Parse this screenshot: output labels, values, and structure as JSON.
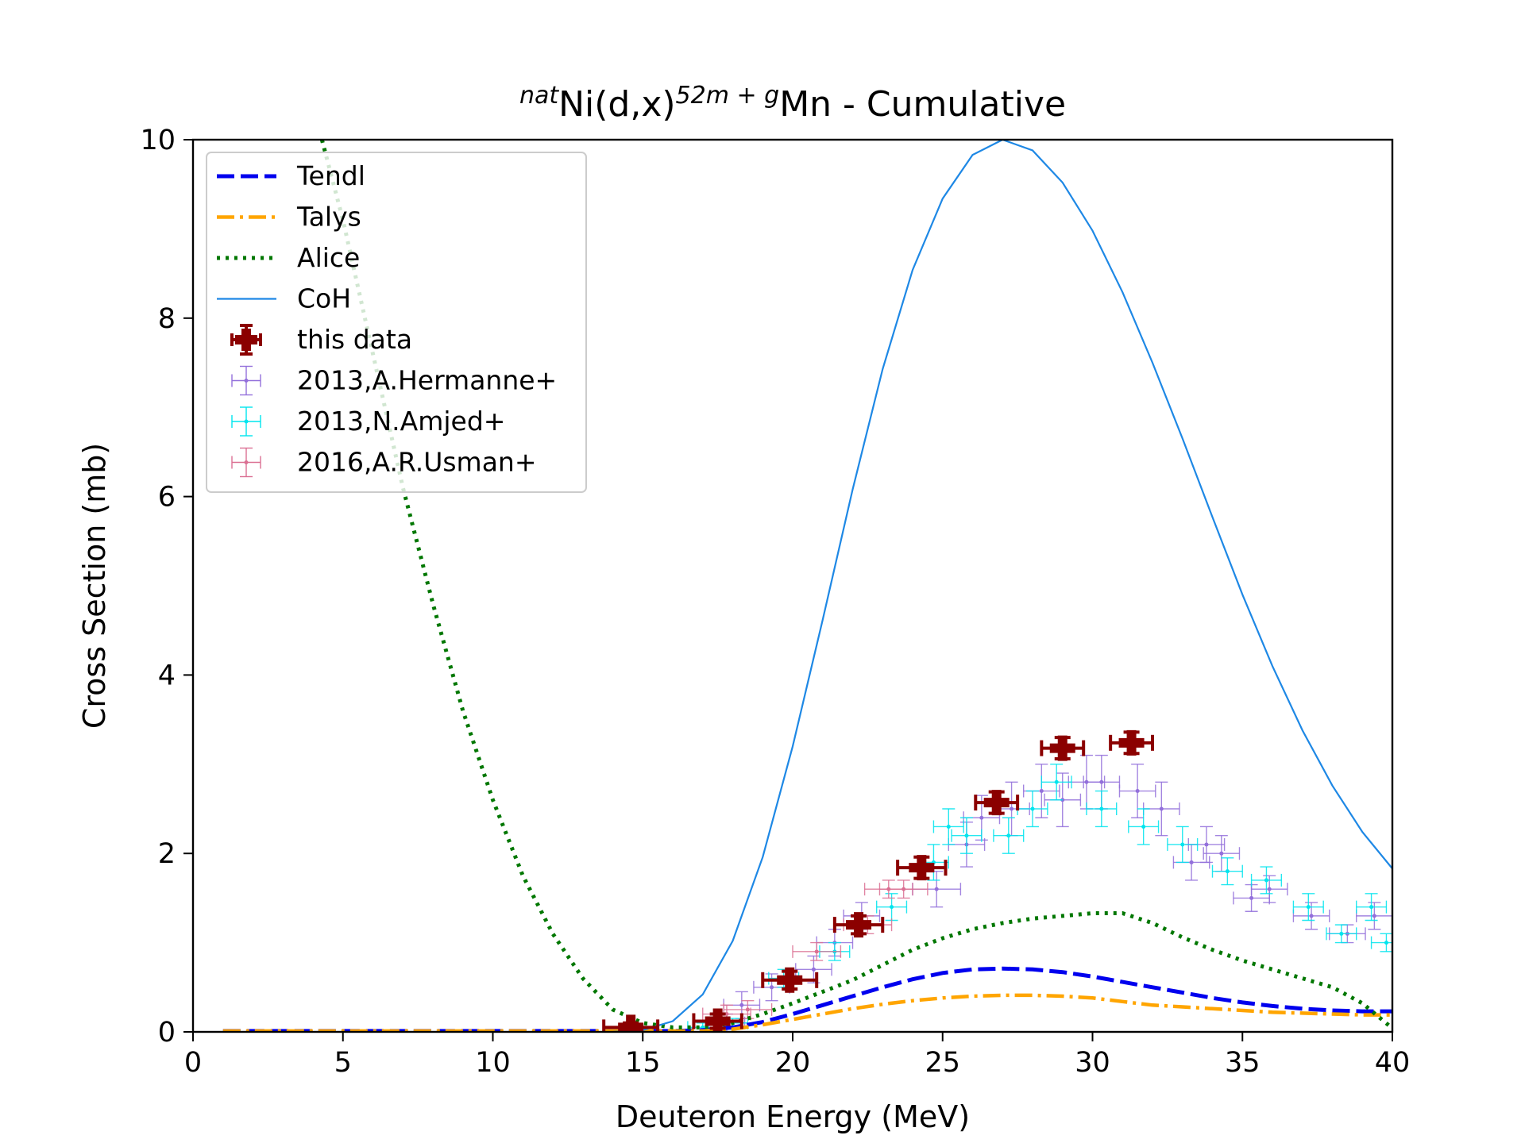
{
  "chart_data": {
    "type": "line",
    "title": {
      "pre_sup": "nat",
      "main": "Ni(d,x)",
      "sup": "52m + g",
      "post": "Mn - Cumulative"
    },
    "xlabel": "Deuteron Energy (MeV)",
    "ylabel": "Cross Section (mb)",
    "xlim": [
      0,
      40
    ],
    "ylim": [
      0,
      10
    ],
    "x_ticks": [
      "0",
      "5",
      "10",
      "15",
      "20",
      "25",
      "30",
      "35",
      "40"
    ],
    "y_ticks": [
      "0",
      "2",
      "4",
      "6",
      "8",
      "10"
    ],
    "grid": false,
    "legend_position": "top-left",
    "series": [
      {
        "name": "Tendl",
        "kind": "line",
        "style": "dashed",
        "color": "#0000ee",
        "x": [
          1,
          13,
          15,
          16,
          17,
          18,
          19,
          20,
          21,
          22,
          23,
          24,
          25,
          26,
          27,
          28,
          29,
          30,
          31,
          32,
          33,
          34,
          35,
          36,
          37,
          38,
          39,
          40
        ],
        "y": [
          0.01,
          0.01,
          0.01,
          0.01,
          0.02,
          0.05,
          0.11,
          0.2,
          0.3,
          0.4,
          0.5,
          0.59,
          0.66,
          0.7,
          0.71,
          0.7,
          0.67,
          0.62,
          0.56,
          0.5,
          0.44,
          0.38,
          0.33,
          0.29,
          0.26,
          0.24,
          0.23,
          0.23
        ]
      },
      {
        "name": "Talys",
        "kind": "line",
        "style": "dashdot",
        "color": "#ffa500",
        "x": [
          1,
          13,
          15,
          16,
          17,
          18,
          19,
          20,
          21,
          22,
          23,
          24,
          25,
          26,
          27,
          28,
          29,
          30,
          31,
          32,
          33,
          34,
          35,
          36,
          37,
          38,
          39,
          40
        ],
        "y": [
          0.01,
          0.01,
          0.01,
          0.01,
          0.01,
          0.03,
          0.08,
          0.14,
          0.2,
          0.26,
          0.31,
          0.35,
          0.38,
          0.4,
          0.41,
          0.41,
          0.4,
          0.38,
          0.34,
          0.3,
          0.28,
          0.26,
          0.24,
          0.22,
          0.21,
          0.2,
          0.19,
          0.19
        ]
      },
      {
        "name": "Alice",
        "kind": "line",
        "style": "dotted",
        "color": "#007700",
        "x": [
          4.3,
          5,
          6,
          7,
          8,
          9,
          10,
          11,
          12,
          13,
          14,
          15,
          16,
          17,
          18,
          19,
          20,
          21,
          22,
          23,
          24,
          25,
          26,
          27,
          28,
          29,
          30,
          31,
          32,
          33,
          34,
          35,
          36,
          37,
          38,
          39,
          40
        ],
        "y": [
          10,
          9.1,
          7.6,
          6.1,
          4.8,
          3.6,
          2.6,
          1.75,
          1.1,
          0.6,
          0.25,
          0.1,
          0.05,
          0.05,
          0.1,
          0.2,
          0.32,
          0.45,
          0.58,
          0.75,
          0.92,
          1.05,
          1.15,
          1.22,
          1.27,
          1.3,
          1.33,
          1.33,
          1.22,
          1.06,
          0.92,
          0.8,
          0.7,
          0.6,
          0.5,
          0.32,
          0.04
        ]
      },
      {
        "name": "CoH",
        "kind": "line",
        "style": "solid",
        "color": "#1e88e5",
        "x": [
          14,
          15,
          16,
          17,
          18,
          19,
          20,
          21,
          22,
          23,
          24,
          25,
          26,
          27,
          28,
          29,
          30,
          31,
          32,
          33,
          34,
          35,
          36,
          37,
          38,
          39,
          40
        ],
        "y": [
          0.0,
          0.02,
          0.12,
          0.42,
          1.02,
          1.96,
          3.2,
          4.62,
          6.08,
          7.43,
          8.54,
          9.34,
          9.83,
          10.0,
          9.88,
          9.52,
          8.98,
          8.29,
          7.5,
          6.65,
          5.77,
          4.9,
          4.1,
          3.38,
          2.76,
          2.24,
          1.83
        ]
      },
      {
        "name": "this data",
        "kind": "errorbar",
        "color": "#8b0000",
        "x": [
          14.6,
          17.5,
          19.9,
          22.2,
          24.3,
          26.8,
          29.0,
          31.3
        ],
        "y": [
          0.05,
          0.12,
          0.58,
          1.2,
          1.84,
          2.57,
          3.18,
          3.24
        ],
        "xerr": [
          0.9,
          0.8,
          0.9,
          0.8,
          0.8,
          0.7,
          0.7,
          0.7
        ],
        "yerr": [
          0.05,
          0.08,
          0.1,
          0.1,
          0.12,
          0.12,
          0.12,
          0.12
        ]
      },
      {
        "name": "2013,A.Hermanne+",
        "kind": "errorbar",
        "color": "#9370db",
        "x": [
          17.8,
          18.3,
          19.3,
          20.7,
          21.4,
          22.3,
          24.8,
          25.8,
          26.3,
          27.3,
          28.3,
          29.0,
          29.8,
          30.3,
          31.5,
          32.3,
          33.3,
          33.8,
          34.3,
          35.3,
          35.9,
          37.3,
          38.5,
          39.4
        ],
        "y": [
          0.1,
          0.3,
          0.5,
          0.7,
          1.0,
          1.3,
          1.6,
          2.1,
          2.4,
          2.5,
          2.7,
          2.6,
          2.8,
          2.8,
          2.7,
          2.5,
          1.9,
          2.1,
          2.0,
          1.5,
          1.6,
          1.3,
          1.1,
          1.3
        ],
        "xerr": [
          0.6,
          0.6,
          0.6,
          0.6,
          0.6,
          0.6,
          0.8,
          0.6,
          0.6,
          0.6,
          0.6,
          0.6,
          0.6,
          0.6,
          0.6,
          0.6,
          0.6,
          0.6,
          0.6,
          0.6,
          0.6,
          0.6,
          0.6,
          0.6
        ],
        "yerr": [
          0.1,
          0.15,
          0.15,
          0.15,
          0.15,
          0.15,
          0.2,
          0.25,
          0.25,
          0.3,
          0.3,
          0.3,
          0.3,
          0.3,
          0.3,
          0.3,
          0.2,
          0.2,
          0.2,
          0.15,
          0.15,
          0.15,
          0.1,
          0.15
        ]
      },
      {
        "name": "2013,N.Amjed+",
        "kind": "errorbar",
        "color": "#00e5ee",
        "x": [
          17.0,
          18.0,
          19.7,
          21.4,
          23.3,
          24.7,
          25.2,
          25.8,
          27.2,
          28.0,
          28.8,
          30.3,
          31.7,
          33.0,
          34.5,
          35.8,
          37.2,
          38.3,
          39.3,
          39.8
        ],
        "y": [
          0.05,
          0.1,
          0.6,
          0.9,
          1.4,
          1.9,
          2.3,
          2.2,
          2.2,
          2.5,
          2.8,
          2.5,
          2.3,
          2.1,
          1.8,
          1.7,
          1.4,
          1.1,
          1.4,
          1.0
        ],
        "xerr": [
          0.5,
          0.5,
          0.5,
          0.5,
          0.5,
          0.5,
          0.5,
          0.5,
          0.5,
          0.5,
          0.5,
          0.5,
          0.5,
          0.5,
          0.5,
          0.5,
          0.5,
          0.5,
          0.5,
          0.5
        ],
        "yerr": [
          0.05,
          0.05,
          0.1,
          0.1,
          0.15,
          0.2,
          0.2,
          0.2,
          0.2,
          0.2,
          0.2,
          0.2,
          0.2,
          0.2,
          0.15,
          0.15,
          0.15,
          0.1,
          0.15,
          0.1
        ]
      },
      {
        "name": "2016,A.R.Usman+",
        "kind": "errorbar",
        "color": "#db7093",
        "x": [
          17.8,
          18.5,
          20.8,
          22.5,
          23.2,
          23.7
        ],
        "y": [
          0.2,
          0.25,
          0.9,
          1.2,
          1.6,
          1.6
        ],
        "xerr": [
          0.8,
          0.8,
          0.8,
          0.8,
          0.8,
          0.8
        ],
        "yerr": [
          0.1,
          0.1,
          0.1,
          0.1,
          0.1,
          0.1
        ]
      }
    ]
  }
}
